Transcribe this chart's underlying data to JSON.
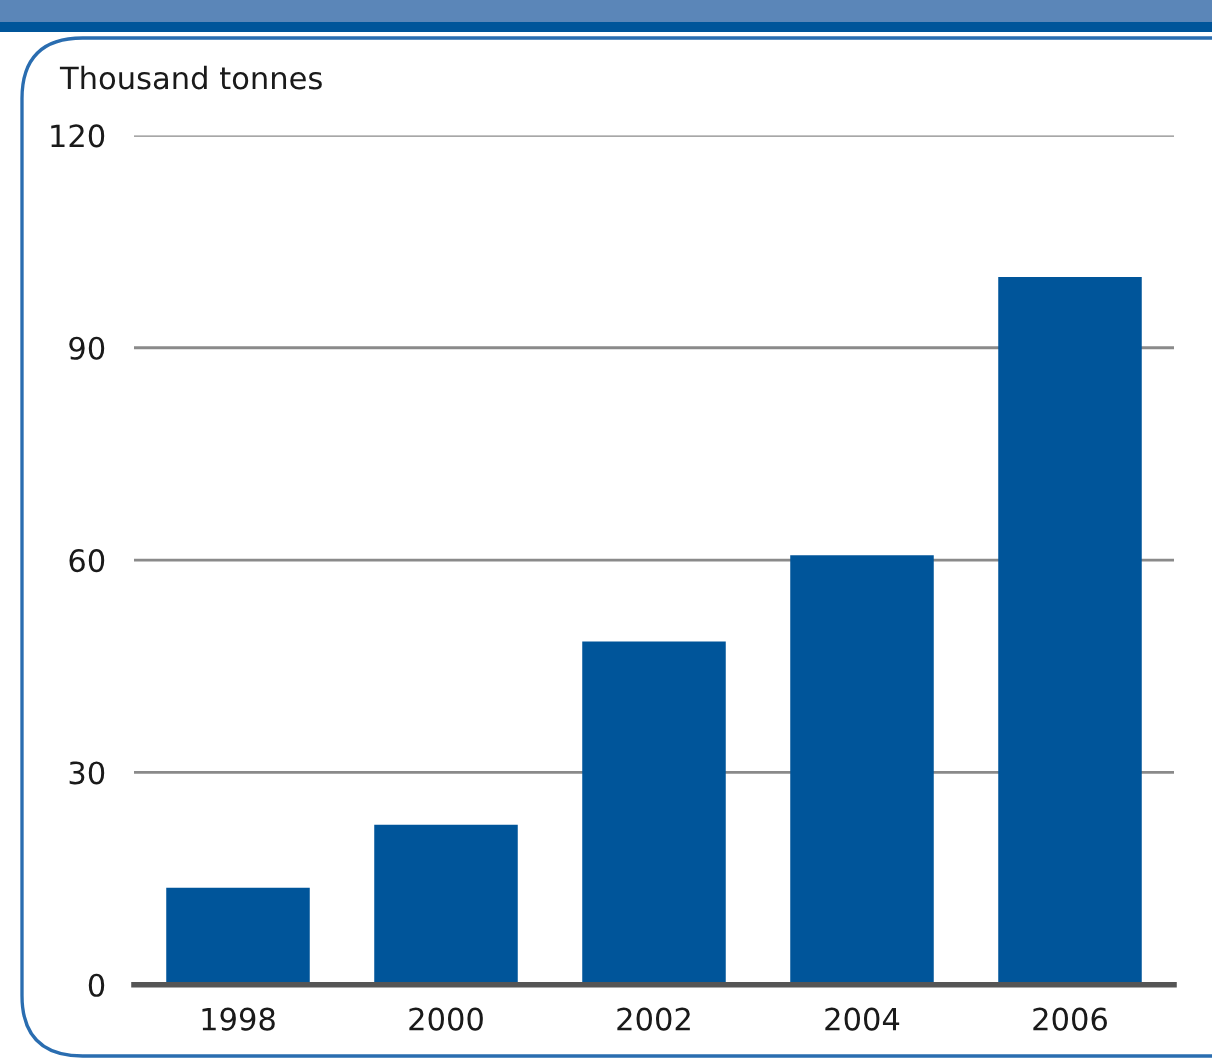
{
  "chart_data": {
    "type": "bar",
    "ylabel": "Thousand tonnes",
    "categories": [
      "1998",
      "2000",
      "2002",
      "2004",
      "2006"
    ],
    "values": [
      13.7,
      22.6,
      48.5,
      60.7,
      100
    ],
    "color": "#00559a",
    "ylim": [
      0,
      120
    ],
    "yticks": [
      0,
      30,
      60,
      90,
      120
    ],
    "grid": "y"
  }
}
